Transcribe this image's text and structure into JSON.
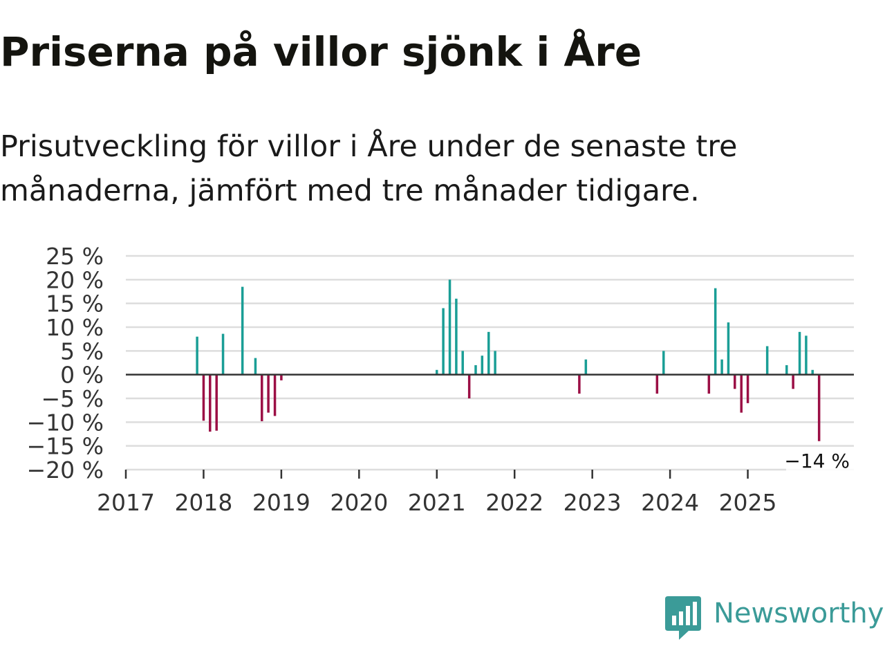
{
  "header": {
    "title": "Priserna på villor sjönk i Åre",
    "subtitle": "Prisutveckling för villor i Åre under de senaste tre månaderna, jämfört med tre månader tidigare."
  },
  "brand": {
    "name": "Newsworthy",
    "icon": "newsworthy-logo-icon",
    "color": "#3b9b98"
  },
  "colors": {
    "positive": "#1a9e96",
    "negative": "#9b0f45",
    "zero_line": "#333333",
    "grid": "#dddddd"
  },
  "chart_data": {
    "type": "bar",
    "title": "Priserna på villor sjönk i Åre",
    "subtitle": "Prisutveckling för villor i Åre under de senaste tre månaderna, jämfört med tre månader tidigare.",
    "xlabel": "",
    "ylabel": "",
    "ylim": [
      -20,
      25
    ],
    "yticks": [
      25,
      20,
      15,
      10,
      5,
      0,
      -5,
      -10,
      -15,
      -20
    ],
    "ytick_labels": [
      "25 %",
      "20 %",
      "15 %",
      "10 %",
      "5 %",
      "0 %",
      "−5 %",
      "−10 %",
      "−15 %",
      "−20 %"
    ],
    "xlim": [
      2017.0,
      2026.0
    ],
    "xticks": [
      2017,
      2018,
      2019,
      2020,
      2021,
      2022,
      2023,
      2024,
      2025
    ],
    "xtick_labels": [
      "2017",
      "2018",
      "2019",
      "2020",
      "2021",
      "2022",
      "2023",
      "2024",
      "2025"
    ],
    "grid": true,
    "series": [
      {
        "name": "Prisutveckling",
        "points": [
          {
            "x": 2017.917,
            "value": 8
          },
          {
            "x": 2018.0,
            "value": -9.7
          },
          {
            "x": 2018.083,
            "value": -12
          },
          {
            "x": 2018.167,
            "value": -11.8
          },
          {
            "x": 2018.25,
            "value": 8.6
          },
          {
            "x": 2018.5,
            "value": 18.5
          },
          {
            "x": 2018.667,
            "value": 3.5
          },
          {
            "x": 2018.75,
            "value": -9.8
          },
          {
            "x": 2018.833,
            "value": -8
          },
          {
            "x": 2018.917,
            "value": -8.7
          },
          {
            "x": 2019.0,
            "value": -1.2
          },
          {
            "x": 2021.0,
            "value": 1
          },
          {
            "x": 2021.083,
            "value": 14
          },
          {
            "x": 2021.167,
            "value": 20
          },
          {
            "x": 2021.25,
            "value": 16
          },
          {
            "x": 2021.333,
            "value": 5
          },
          {
            "x": 2021.417,
            "value": -5
          },
          {
            "x": 2021.5,
            "value": 2
          },
          {
            "x": 2021.583,
            "value": 4
          },
          {
            "x": 2021.667,
            "value": 9
          },
          {
            "x": 2021.75,
            "value": 5
          },
          {
            "x": 2022.833,
            "value": -4
          },
          {
            "x": 2022.917,
            "value": 3.2
          },
          {
            "x": 2023.833,
            "value": -4
          },
          {
            "x": 2023.917,
            "value": 5
          },
          {
            "x": 2024.5,
            "value": -4
          },
          {
            "x": 2024.583,
            "value": 18.2
          },
          {
            "x": 2024.667,
            "value": 3.2
          },
          {
            "x": 2024.75,
            "value": 11
          },
          {
            "x": 2024.833,
            "value": -3
          },
          {
            "x": 2024.917,
            "value": -8
          },
          {
            "x": 2025.0,
            "value": -6
          },
          {
            "x": 2025.25,
            "value": 6
          },
          {
            "x": 2025.5,
            "value": 2
          },
          {
            "x": 2025.583,
            "value": -3
          },
          {
            "x": 2025.667,
            "value": 9
          },
          {
            "x": 2025.75,
            "value": 8.2
          },
          {
            "x": 2025.833,
            "value": 1
          },
          {
            "x": 2025.917,
            "value": -14
          }
        ]
      }
    ],
    "annotations": [
      {
        "label": "−14 %",
        "x": 2025.917,
        "value": -14,
        "position": "bottom-right"
      }
    ]
  }
}
